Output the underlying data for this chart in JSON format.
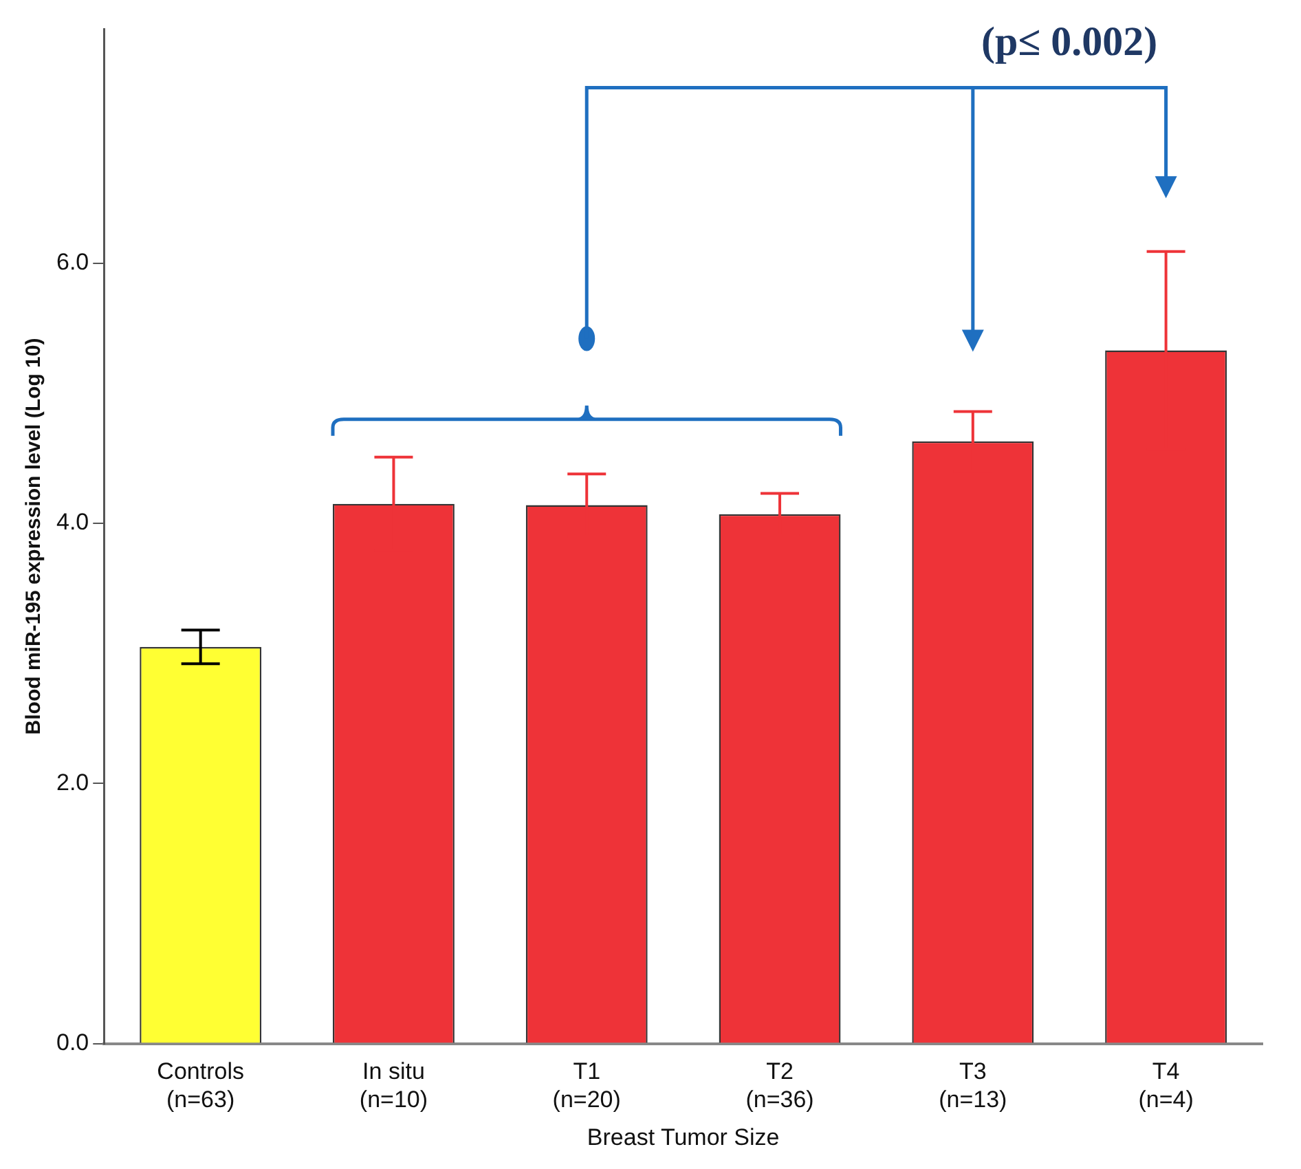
{
  "chart_data": {
    "type": "bar",
    "xlabel": "Breast Tumor Size",
    "ylabel": "Blood miR-195 expression level (Log 10)",
    "categories": [
      "Controls\n(n=63)",
      "In situ\n(n=10)",
      "T1\n(n=20)",
      "T2\n(n=36)",
      "T3\n(n=13)",
      "T4\n(n=4)"
    ],
    "values": [
      3.05,
      4.15,
      4.14,
      4.07,
      4.63,
      5.33
    ],
    "errors": [
      0.13,
      0.36,
      0.24,
      0.16,
      0.23,
      0.76
    ],
    "colors": [
      "#ffff33",
      "#ee3338",
      "#ee3338",
      "#ee3338",
      "#ee3338",
      "#ee3338"
    ],
    "ylim": [
      0,
      7.8
    ],
    "yticks": [
      {
        "value": 0,
        "label": "0.0"
      },
      {
        "value": 2,
        "label": "2.0"
      },
      {
        "value": 4,
        "label": "4.0"
      },
      {
        "value": 6,
        "label": "6.0"
      }
    ],
    "grid": false,
    "legend": false,
    "annotations": [
      "(p≤ 0.002)"
    ]
  }
}
